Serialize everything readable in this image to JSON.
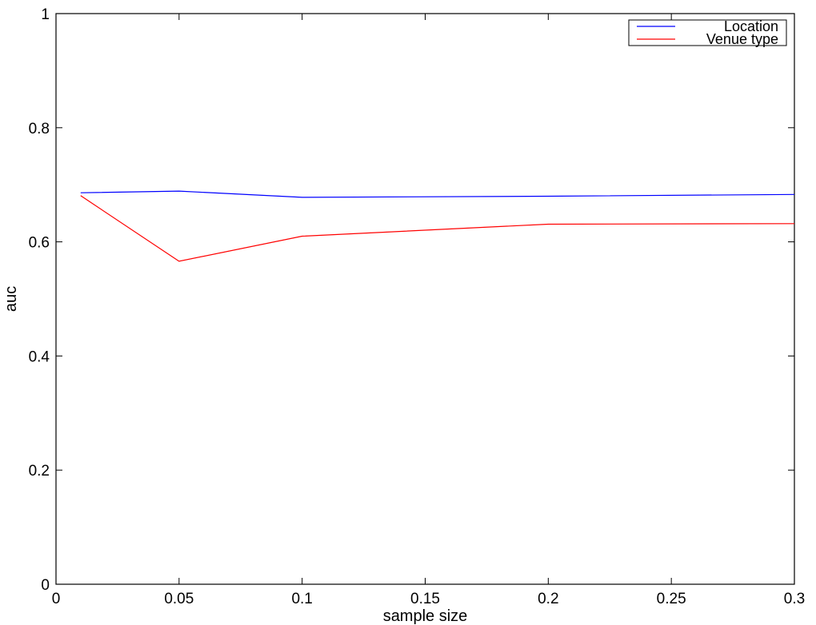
{
  "chart_data": {
    "type": "line",
    "title": "",
    "xlabel": "sample size",
    "ylabel": "auc",
    "xlim": [
      0,
      0.3
    ],
    "ylim": [
      0,
      1
    ],
    "xticks": [
      0,
      0.05,
      0.1,
      0.15,
      0.2,
      0.25,
      0.3
    ],
    "xtick_labels": [
      "0",
      "0.05",
      "0.1",
      "0.15",
      "0.2",
      "0.25",
      "0.3"
    ],
    "yticks": [
      0,
      0.2,
      0.4,
      0.6,
      0.8,
      1
    ],
    "ytick_labels": [
      "0",
      "0.2",
      "0.4",
      "0.6",
      "0.8",
      "1"
    ],
    "grid": false,
    "legend": "top-right",
    "series": [
      {
        "name": "Location",
        "color": "#0000ff",
        "x": [
          0.01,
          0.05,
          0.1,
          0.2,
          0.3
        ],
        "y": [
          0.686,
          0.689,
          0.678,
          0.68,
          0.683
        ]
      },
      {
        "name": "Venue type",
        "color": "#ff0000",
        "x": [
          0.01,
          0.05,
          0.1,
          0.2,
          0.3
        ],
        "y": [
          0.681,
          0.566,
          0.61,
          0.631,
          0.632
        ]
      }
    ]
  }
}
